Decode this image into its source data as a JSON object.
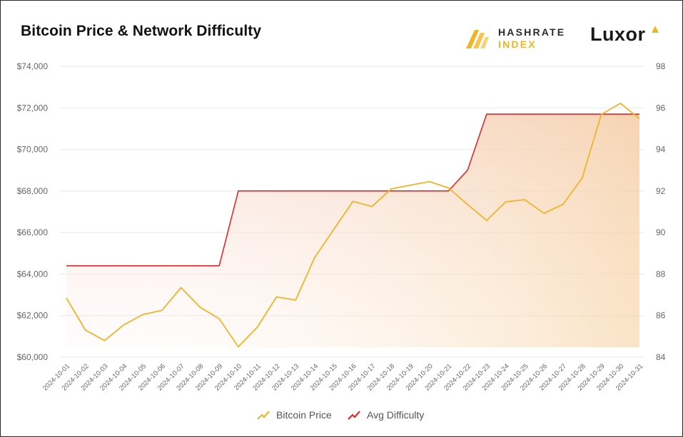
{
  "title": "Bitcoin Price & Network Difficulty",
  "brands": {
    "hashrate_line1": "HASHRATE",
    "hashrate_line2": "INDEX",
    "luxor": "Luxor"
  },
  "colors": {
    "price": "#f0b429",
    "difficulty": "#e0292b",
    "grid": "#e8e8e8"
  },
  "chart_data": {
    "type": "line",
    "title": "Bitcoin Price & Network Difficulty",
    "x": [
      "2024-10-01",
      "2024-10-02",
      "2024-10-03",
      "2024-10-04",
      "2024-10-05",
      "2024-10-06",
      "2024-10-07",
      "2024-10-08",
      "2024-10-09",
      "2024-10-10",
      "2024-10-11",
      "2024-10-12",
      "2024-10-13",
      "2024-10-14",
      "2024-10-15",
      "2024-10-16",
      "2024-10-17",
      "2024-10-18",
      "2024-10-19",
      "2024-10-20",
      "2024-10-21",
      "2024-10-22",
      "2024-10-23",
      "2024-10-24",
      "2024-10-25",
      "2024-10-26",
      "2024-10-27",
      "2024-10-28",
      "2024-10-29",
      "2024-10-30",
      "2024-10-31"
    ],
    "series": [
      {
        "name": "Bitcoin Price",
        "axis": "left",
        "values": [
          62850,
          61300,
          60800,
          61550,
          62050,
          62250,
          63350,
          62400,
          61850,
          60500,
          61450,
          62900,
          62750,
          64800,
          66150,
          67500,
          67250,
          68100,
          68280,
          68450,
          68150,
          67350,
          66580,
          67480,
          67580,
          66920,
          67360,
          68620,
          71680,
          72220,
          71480
        ]
      },
      {
        "name": "Avg Difficulty",
        "axis": "right",
        "values": [
          88.4,
          88.4,
          88.4,
          88.4,
          88.4,
          88.4,
          88.4,
          88.4,
          88.4,
          92.0,
          92.0,
          92.0,
          92.0,
          92.0,
          92.0,
          92.0,
          92.0,
          92.0,
          92.0,
          92.0,
          92.0,
          93.0,
          95.7,
          95.7,
          95.7,
          95.7,
          95.7,
          95.7,
          95.7,
          95.7,
          95.7
        ]
      }
    ],
    "yleft": {
      "lim": [
        60000,
        74000
      ],
      "ticks": [
        "$60,000",
        "$62,000",
        "$64,000",
        "$66,000",
        "$68,000",
        "$70,000",
        "$72,000",
        "$74,000"
      ]
    },
    "yright": {
      "lim": [
        84,
        98
      ],
      "ticks": [
        "84",
        "86",
        "88",
        "90",
        "92",
        "94",
        "96",
        "98"
      ]
    },
    "grid": true,
    "legend": "bottom-center"
  },
  "legend": {
    "price_label": "Bitcoin Price",
    "difficulty_label": "Avg Difficulty"
  }
}
